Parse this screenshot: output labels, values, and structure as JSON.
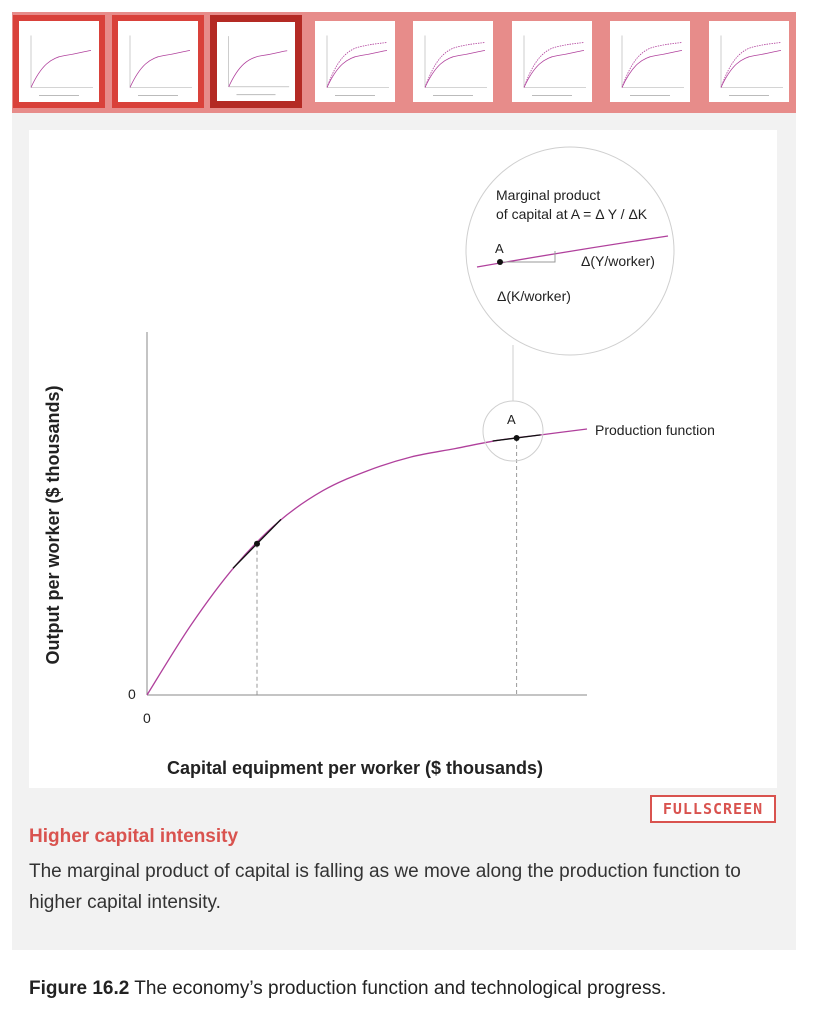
{
  "thumbnails": [
    {
      "state": "seen"
    },
    {
      "state": "seen"
    },
    {
      "state": "current"
    },
    {
      "state": "upcoming"
    },
    {
      "state": "upcoming"
    },
    {
      "state": "upcoming"
    },
    {
      "state": "upcoming"
    },
    {
      "state": "upcoming"
    }
  ],
  "colors": {
    "accent": "#d9534f",
    "curve": "#b0409c",
    "thumb_seen": "#d9413a",
    "thumb_current": "#b42a24",
    "thumb_upcoming": "#e78c8a"
  },
  "chart_data": {
    "type": "line",
    "xlabel": "Capital equipment per worker ($ thousands)",
    "ylabel": "Output per worker ($ thousands)",
    "x_origin_label": "0",
    "y_origin_label": "0",
    "series": [
      {
        "name": "Production function",
        "shape": "concave",
        "y_scale": "normalized 0-1",
        "x": [
          0,
          0.1,
          0.2,
          0.3,
          0.4,
          0.5,
          0.6,
          0.7,
          0.8,
          0.9,
          1.0
        ],
        "y": [
          0,
          0.25,
          0.46,
          0.62,
          0.73,
          0.8,
          0.85,
          0.88,
          0.91,
          0.93,
          0.95
        ]
      }
    ],
    "marked_points": [
      {
        "label": "",
        "x": 0.25
      },
      {
        "label": "A",
        "x": 0.84
      }
    ],
    "magnifier": {
      "title_line1": "Marginal product",
      "title_line2": "of capital at A = Δ Y / ΔK",
      "point_label": "A",
      "dy_label": "Δ(Y/worker)",
      "dx_label": "Δ(K/worker)"
    }
  },
  "step": {
    "title": "Higher capital intensity",
    "text": "The marginal product of capital is falling as we move along the production function to higher capital intensity."
  },
  "fullscreen_label": "FULLSCREEN",
  "caption": {
    "number": "Figure 16.2",
    "text": "The economy’s production function and technological progress."
  }
}
